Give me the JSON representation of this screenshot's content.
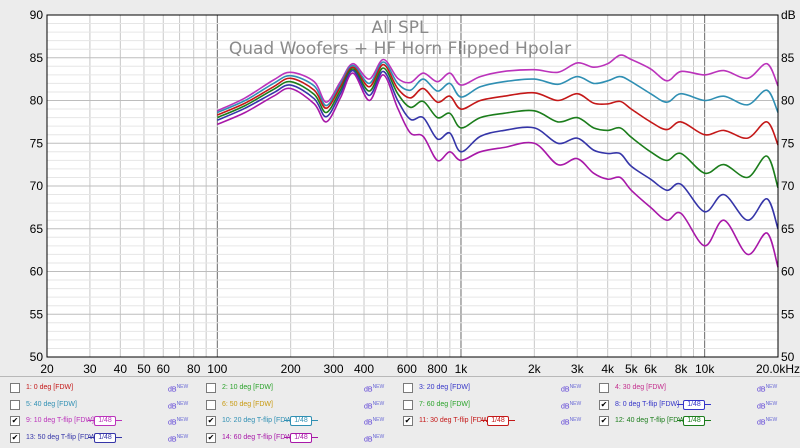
{
  "chart_data": {
    "type": "line",
    "title": "All SPL",
    "subtitle": "Quad Woofers + HF Horn Flipped Hpolar",
    "ylabel": "dB",
    "x_scale": "log",
    "xlim": [
      20,
      20000
    ],
    "ylim": [
      50,
      90
    ],
    "x_ticks": [
      {
        "v": 20,
        "label": "20"
      },
      {
        "v": 30,
        "label": "30"
      },
      {
        "v": 40,
        "label": "40"
      },
      {
        "v": 50,
        "label": "50"
      },
      {
        "v": 60,
        "label": "60"
      },
      {
        "v": 80,
        "label": "80"
      },
      {
        "v": 100,
        "label": "100"
      },
      {
        "v": 200,
        "label": "200"
      },
      {
        "v": 300,
        "label": "300"
      },
      {
        "v": 400,
        "label": "400"
      },
      {
        "v": 600,
        "label": "600"
      },
      {
        "v": 800,
        "label": "800"
      },
      {
        "v": 1000,
        "label": "1k"
      },
      {
        "v": 2000,
        "label": "2k"
      },
      {
        "v": 3000,
        "label": "3k"
      },
      {
        "v": 4000,
        "label": "4k"
      },
      {
        "v": 5000,
        "label": "5k"
      },
      {
        "v": 6000,
        "label": "6k"
      },
      {
        "v": 8000,
        "label": "8k"
      },
      {
        "v": 10000,
        "label": "10k"
      },
      {
        "v": 20000,
        "label": "20.0kHz"
      }
    ],
    "y_ticks": [
      50,
      55,
      60,
      65,
      70,
      75,
      80,
      85,
      90
    ],
    "grid": true,
    "series": [
      {
        "name": "9: 10 deg T-flip [FDW]",
        "color": "#bb33bb",
        "x": [
          100,
          130,
          170,
          200,
          250,
          280,
          320,
          360,
          420,
          480,
          550,
          620,
          700,
          800,
          900,
          1000,
          1200,
          1500,
          2000,
          2500,
          3000,
          3500,
          4000,
          4500,
          5000,
          6000,
          7000,
          8000,
          10000,
          12000,
          15000,
          18000,
          20000
        ],
        "y": [
          78.8,
          80.3,
          82.4,
          83.3,
          82.2,
          79.8,
          82.2,
          84.3,
          82.5,
          84.8,
          82.6,
          82.1,
          83.2,
          82.2,
          83.2,
          81.8,
          82.8,
          83.4,
          83.6,
          83.3,
          84.4,
          83.9,
          84.3,
          85.3,
          84.8,
          83.7,
          82.3,
          83.4,
          83.0,
          83.5,
          82.6,
          84.3,
          81.7
        ]
      },
      {
        "name": "10: 20 deg T-flip [FDW]",
        "color": "#2f8fb3",
        "x": [
          100,
          130,
          170,
          200,
          250,
          280,
          320,
          360,
          420,
          480,
          550,
          620,
          700,
          800,
          900,
          1000,
          1200,
          1500,
          2000,
          2500,
          3000,
          3500,
          4000,
          4500,
          5000,
          6000,
          7000,
          8000,
          10000,
          12000,
          15000,
          18000,
          20000
        ],
        "y": [
          78.6,
          80.0,
          82.0,
          82.9,
          81.7,
          79.4,
          81.9,
          84.1,
          82.0,
          84.5,
          82.0,
          81.2,
          82.5,
          81.1,
          82.0,
          80.4,
          81.6,
          82.2,
          82.5,
          81.9,
          82.8,
          82.0,
          82.3,
          82.8,
          82.2,
          80.8,
          79.8,
          80.8,
          80.0,
          80.5,
          79.5,
          81.2,
          78.6
        ]
      },
      {
        "name": "11: 30 deg T-flip [FDW]",
        "color": "#c41818",
        "x": [
          100,
          130,
          170,
          200,
          250,
          280,
          320,
          360,
          420,
          480,
          550,
          620,
          700,
          800,
          900,
          1000,
          1200,
          1500,
          2000,
          2500,
          3000,
          3500,
          4000,
          4500,
          5000,
          6000,
          7000,
          8000,
          10000,
          12000,
          15000,
          18000,
          20000
        ],
        "y": [
          78.3,
          79.7,
          81.6,
          82.6,
          81.2,
          79.1,
          81.6,
          83.9,
          81.6,
          84.2,
          81.4,
          80.3,
          81.4,
          79.8,
          80.5,
          79.0,
          80.0,
          80.5,
          80.9,
          80.0,
          80.8,
          79.7,
          79.6,
          79.9,
          79.0,
          77.5,
          76.6,
          77.5,
          76.0,
          76.5,
          75.6,
          77.5,
          74.8
        ]
      },
      {
        "name": "12: 40 deg T-flip [FDW]",
        "color": "#1b7d1b",
        "x": [
          100,
          130,
          170,
          200,
          250,
          280,
          320,
          360,
          420,
          480,
          550,
          620,
          700,
          800,
          900,
          1000,
          1200,
          1500,
          2000,
          2500,
          3000,
          3500,
          4000,
          4500,
          5000,
          6000,
          7000,
          8000,
          10000,
          12000,
          15000,
          18000,
          20000
        ],
        "y": [
          78.0,
          79.4,
          81.3,
          82.2,
          80.7,
          78.6,
          81.2,
          83.7,
          81.1,
          83.8,
          80.8,
          79.2,
          79.9,
          78.0,
          78.5,
          76.8,
          78.0,
          78.5,
          78.8,
          77.5,
          78.0,
          76.8,
          76.5,
          76.8,
          75.7,
          74.0,
          73.0,
          73.8,
          71.5,
          72.5,
          71.0,
          73.5,
          69.8
        ]
      },
      {
        "name": "13: 50 deg T-flip [FDW]",
        "color": "#3535a8",
        "x": [
          100,
          130,
          170,
          200,
          250,
          280,
          320,
          360,
          420,
          480,
          550,
          620,
          700,
          800,
          900,
          1000,
          1200,
          1500,
          2000,
          2500,
          3000,
          3500,
          4000,
          4500,
          5000,
          6000,
          7000,
          8000,
          10000,
          12000,
          15000,
          18000,
          20000
        ],
        "y": [
          77.7,
          79.1,
          80.9,
          81.8,
          80.2,
          78.1,
          80.8,
          83.5,
          80.6,
          83.4,
          80.0,
          77.8,
          78.0,
          75.5,
          76.2,
          74.0,
          75.8,
          76.5,
          76.8,
          75.0,
          75.6,
          74.2,
          73.8,
          73.8,
          72.3,
          70.8,
          69.5,
          70.2,
          67.0,
          69.0,
          66.0,
          68.5,
          65.0
        ]
      },
      {
        "name": "14: 60 deg T-flip [FDW]",
        "color": "#a818a8",
        "x": [
          100,
          130,
          170,
          200,
          250,
          280,
          320,
          360,
          420,
          480,
          550,
          620,
          700,
          800,
          900,
          1000,
          1200,
          1500,
          2000,
          2500,
          3000,
          3500,
          4000,
          4500,
          5000,
          6000,
          7000,
          8000,
          10000,
          12000,
          15000,
          18000,
          20000
        ],
        "y": [
          77.2,
          78.6,
          80.5,
          81.4,
          79.6,
          77.5,
          80.3,
          83.2,
          80.0,
          83.0,
          79.1,
          76.2,
          75.8,
          73.0,
          74.0,
          73.0,
          74.0,
          74.5,
          75.0,
          72.5,
          73.2,
          71.5,
          70.8,
          71.0,
          69.5,
          67.5,
          66.0,
          66.8,
          63.0,
          66.0,
          62.0,
          64.5,
          60.5
        ]
      }
    ]
  },
  "legend": {
    "unit": "dB",
    "unit_sup": "NEW",
    "rows": [
      [
        {
          "label": "1: 0 deg [FDW]",
          "color": "#c41818",
          "checked": false,
          "badge": ""
        },
        {
          "label": "2: 10 deg [FDW]",
          "color": "#2aa22a",
          "checked": false,
          "badge": ""
        },
        {
          "label": "3: 20 deg [FDW]",
          "color": "#3535c8",
          "checked": false,
          "badge": ""
        },
        {
          "label": "4: 30 deg [FDW]",
          "color": "#c42e8e",
          "checked": false,
          "badge": ""
        }
      ],
      [
        {
          "label": "5: 40 deg [FDW]",
          "color": "#2f8fb3",
          "checked": false,
          "badge": ""
        },
        {
          "label": "6: 50 deg [FDW]",
          "color": "#c89a10",
          "checked": false,
          "badge": ""
        },
        {
          "label": "7: 60 deg [FDW]",
          "color": "#2aa22a",
          "checked": false,
          "badge": ""
        },
        {
          "label": "8: 0 deg T-flip [FDW]",
          "color": "#3535c8",
          "checked": true,
          "badge": "1/48"
        }
      ],
      [
        {
          "label": "9: 10 deg T-flip [FDW]",
          "color": "#bb33bb",
          "checked": true,
          "badge": "1/48"
        },
        {
          "label": "10: 20 deg T-flip [FDW]",
          "color": "#2f8fb3",
          "checked": true,
          "badge": "1/48"
        },
        {
          "label": "11: 30 deg T-flip [FDW]",
          "color": "#c41818",
          "checked": true,
          "badge": "1/48"
        },
        {
          "label": "12: 40 deg T-flip [FDW]",
          "color": "#1b7d1b",
          "checked": true,
          "badge": "1/48"
        }
      ],
      [
        {
          "label": "13: 50 deg T-flip [FDW]",
          "color": "#3535a8",
          "checked": true,
          "badge": "1/48"
        },
        {
          "label": "14: 60 deg T-flip [FDW]",
          "color": "#a818a8",
          "checked": true,
          "badge": "1/48"
        }
      ]
    ]
  }
}
